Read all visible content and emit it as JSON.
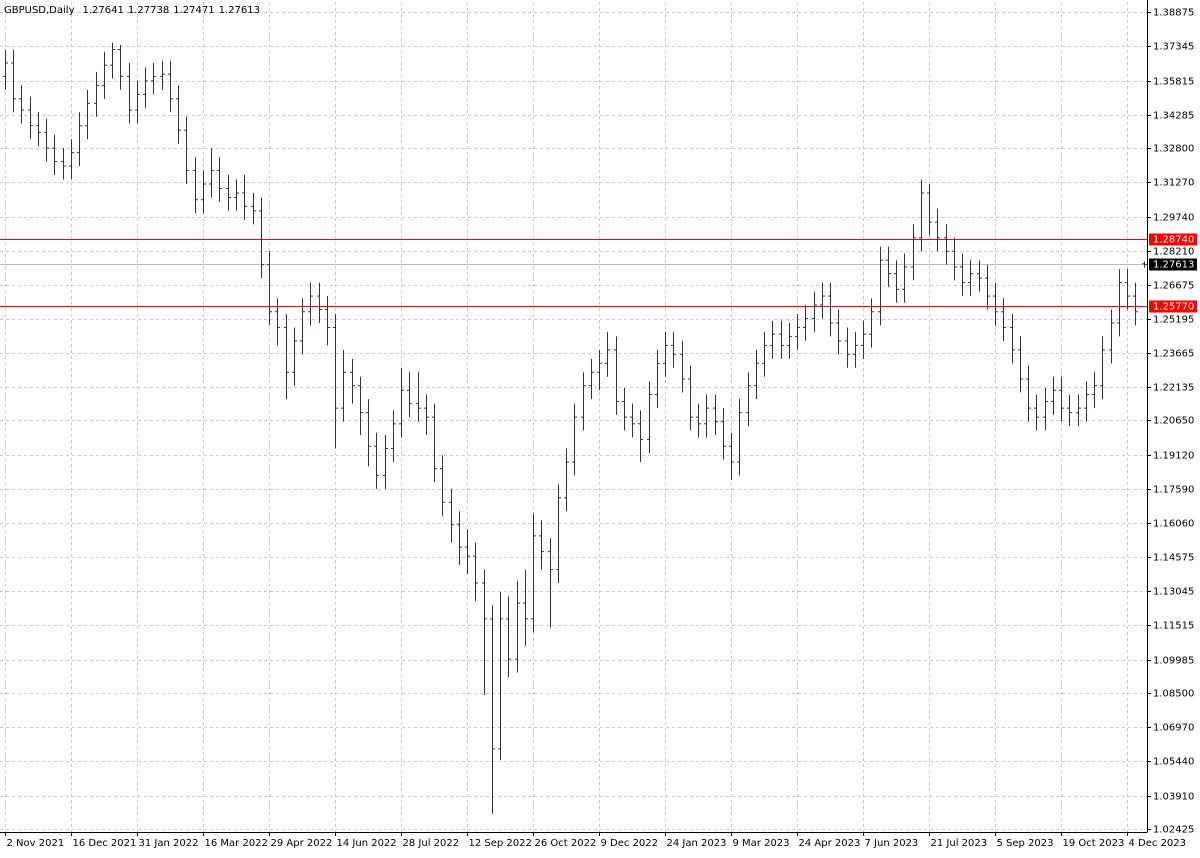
{
  "chart_data": {
    "type": "ohlc",
    "title": "GBPUSD,Daily",
    "color": "#333333",
    "grid": true,
    "xlim": [
      -0.6,
      138.4
    ],
    "ylim": [
      1.0229,
      1.3932
    ],
    "xticks": [
      {
        "value": 0,
        "label": "2 Nov 2021"
      },
      {
        "value": 8,
        "label": "16 Dec 2021"
      },
      {
        "value": 16,
        "label": "31 Jan 2022"
      },
      {
        "value": 24,
        "label": "16 Mar 2022"
      },
      {
        "value": 32,
        "label": "29 Apr 2022"
      },
      {
        "value": 40,
        "label": "14 Jun 2022"
      },
      {
        "value": 48,
        "label": "28 Jul 2022"
      },
      {
        "value": 56,
        "label": "12 Sep 2022"
      },
      {
        "value": 64,
        "label": "26 Oct 2022"
      },
      {
        "value": 72,
        "label": "9 Dec 2022"
      },
      {
        "value": 80,
        "label": "24 Jan 2023"
      },
      {
        "value": 88,
        "label": "9 Mar 2023"
      },
      {
        "value": 96,
        "label": "24 Apr 2023"
      },
      {
        "value": 104,
        "label": "7 Jun 2023"
      },
      {
        "value": 112,
        "label": "21 Jul 2023"
      },
      {
        "value": 120,
        "label": "5 Sep 2023"
      },
      {
        "value": 128,
        "label": "19 Oct 2023"
      },
      {
        "value": 136,
        "label": "4 Dec 2023"
      }
    ],
    "yticks": [
      1.38875,
      1.37345,
      1.35815,
      1.34285,
      {
        "value": 1.328,
        "label": "1.32800"
      },
      {
        "value": 1.3127,
        "label": "1.31270"
      },
      {
        "value": 1.2974,
        "label": "1.29740"
      },
      {
        "value": 1.2821,
        "label": "1.28210"
      },
      1.26675,
      1.25195,
      1.23665,
      1.22135,
      {
        "value": 1.2065,
        "label": "1.20650"
      },
      {
        "value": 1.1912,
        "label": "1.19120"
      },
      {
        "value": 1.1759,
        "label": "1.17590"
      },
      {
        "value": 1.1606,
        "label": "1.16060"
      },
      1.14575,
      1.13045,
      1.11515,
      1.09985,
      {
        "value": 1.085,
        "label": "1.08500"
      },
      {
        "value": 1.0697,
        "label": "1.06970"
      },
      {
        "value": 1.0544,
        "label": "1.05440"
      },
      {
        "value": 1.0391,
        "label": "1.03910"
      },
      1.02425
    ],
    "levels": [
      {
        "value": 1.2874,
        "label": "1.28740",
        "color": "#ff0000"
      },
      {
        "value": 1.2577,
        "label": "1.25770",
        "color": "#ff0000"
      }
    ],
    "open": [
      1.36,
      1.366,
      1.35,
      1.345,
      1.338,
      1.335,
      1.328,
      1.322,
      1.32,
      1.326,
      1.338,
      1.348,
      1.356,
      1.365,
      1.372,
      1.36,
      1.345,
      1.352,
      1.358,
      1.36,
      1.361,
      1.35,
      1.336,
      1.318,
      1.305,
      1.312,
      1.318,
      1.31,
      1.306,
      1.308,
      1.302,
      1.3,
      1.276,
      1.255,
      1.248,
      1.228,
      1.242,
      1.255,
      1.262,
      1.256,
      1.248,
      1.212,
      1.228,
      1.222,
      1.21,
      1.195,
      1.182,
      1.194,
      1.205,
      1.22,
      1.214,
      1.212,
      1.208,
      1.185,
      1.17,
      1.16,
      1.15,
      1.146,
      1.134,
      1.118,
      1.06,
      1.118,
      1.1,
      1.125,
      1.118,
      1.155,
      1.148,
      1.14,
      1.172,
      1.188,
      1.208,
      1.222,
      1.228,
      1.232,
      1.238,
      1.215,
      1.208,
      1.205,
      1.198,
      1.218,
      1.232,
      1.24,
      1.236,
      1.225,
      1.208,
      1.205,
      1.212,
      1.206,
      1.195,
      1.188,
      1.21,
      1.222,
      1.232,
      1.24,
      1.245,
      1.24,
      1.244,
      1.248,
      1.252,
      1.258,
      1.262,
      1.25,
      1.242,
      1.236,
      1.24,
      1.245,
      1.255,
      1.278,
      1.272,
      1.265,
      1.275,
      1.288,
      1.308,
      1.295,
      1.288,
      1.282,
      1.275,
      1.268,
      1.272,
      1.27,
      1.262,
      1.255,
      1.248,
      1.238,
      1.225,
      1.212,
      1.208,
      1.215,
      1.22,
      1.212,
      1.21,
      1.212,
      1.218,
      1.222,
      1.238,
      1.25,
      1.268,
      1.262,
      1.27641
    ],
    "high": [
      1.372,
      1.372,
      1.356,
      1.351,
      1.344,
      1.341,
      1.334,
      1.328,
      1.332,
      1.344,
      1.354,
      1.362,
      1.371,
      1.375,
      1.374,
      1.366,
      1.358,
      1.364,
      1.366,
      1.367,
      1.367,
      1.356,
      1.342,
      1.324,
      1.318,
      1.328,
      1.324,
      1.316,
      1.314,
      1.316,
      1.308,
      1.306,
      1.282,
      1.261,
      1.254,
      1.248,
      1.261,
      1.268,
      1.268,
      1.262,
      1.254,
      1.238,
      1.234,
      1.226,
      1.216,
      1.201,
      1.2,
      1.211,
      1.23,
      1.228,
      1.228,
      1.218,
      1.214,
      1.191,
      1.176,
      1.166,
      1.158,
      1.152,
      1.14,
      1.124,
      1.13,
      1.128,
      1.135,
      1.14,
      1.165,
      1.162,
      1.154,
      1.178,
      1.194,
      1.214,
      1.228,
      1.234,
      1.238,
      1.246,
      1.244,
      1.221,
      1.214,
      1.211,
      1.224,
      1.238,
      1.246,
      1.246,
      1.242,
      1.231,
      1.214,
      1.218,
      1.218,
      1.212,
      1.201,
      1.216,
      1.228,
      1.238,
      1.246,
      1.251,
      1.251,
      1.25,
      1.254,
      1.258,
      1.264,
      1.268,
      1.268,
      1.256,
      1.248,
      1.246,
      1.251,
      1.261,
      1.284,
      1.284,
      1.278,
      1.281,
      1.294,
      1.314,
      1.312,
      1.301,
      1.294,
      1.288,
      1.281,
      1.278,
      1.278,
      1.276,
      1.268,
      1.261,
      1.254,
      1.244,
      1.231,
      1.218,
      1.221,
      1.226,
      1.226,
      1.218,
      1.218,
      1.224,
      1.228,
      1.244,
      1.256,
      1.274,
      1.274,
      1.268,
      1.27738
    ],
    "low": [
      1.354,
      1.344,
      1.339,
      1.332,
      1.329,
      1.322,
      1.316,
      1.314,
      1.314,
      1.32,
      1.332,
      1.342,
      1.35,
      1.359,
      1.354,
      1.339,
      1.339,
      1.346,
      1.352,
      1.354,
      1.344,
      1.33,
      1.312,
      1.299,
      1.299,
      1.306,
      1.304,
      1.3,
      1.3,
      1.296,
      1.294,
      1.27,
      1.249,
      1.24,
      1.216,
      1.222,
      1.236,
      1.249,
      1.25,
      1.24,
      1.194,
      1.206,
      1.214,
      1.2,
      1.186,
      1.176,
      1.176,
      1.188,
      1.199,
      1.208,
      1.206,
      1.2,
      1.179,
      1.164,
      1.152,
      1.142,
      1.138,
      1.126,
      1.084,
      1.031,
      1.055,
      1.092,
      1.094,
      1.106,
      1.112,
      1.14,
      1.114,
      1.134,
      1.166,
      1.182,
      1.202,
      1.216,
      1.22,
      1.226,
      1.209,
      1.202,
      1.199,
      1.188,
      1.192,
      1.212,
      1.226,
      1.23,
      1.219,
      1.202,
      1.199,
      1.199,
      1.2,
      1.189,
      1.18,
      1.182,
      1.204,
      1.216,
      1.226,
      1.234,
      1.234,
      1.234,
      1.238,
      1.242,
      1.246,
      1.252,
      1.244,
      1.236,
      1.23,
      1.23,
      1.234,
      1.239,
      1.249,
      1.266,
      1.259,
      1.259,
      1.269,
      1.282,
      1.289,
      1.282,
      1.276,
      1.269,
      1.262,
      1.262,
      1.264,
      1.256,
      1.249,
      1.242,
      1.232,
      1.219,
      1.206,
      1.202,
      1.202,
      1.209,
      1.206,
      1.204,
      1.204,
      1.206,
      1.212,
      1.216,
      1.232,
      1.244,
      1.256,
      1.249,
      1.27471
    ],
    "close": [
      1.366,
      1.35,
      1.345,
      1.338,
      1.335,
      1.328,
      1.322,
      1.32,
      1.326,
      1.338,
      1.348,
      1.356,
      1.365,
      1.372,
      1.36,
      1.345,
      1.352,
      1.358,
      1.36,
      1.361,
      1.35,
      1.336,
      1.318,
      1.305,
      1.312,
      1.318,
      1.31,
      1.306,
      1.308,
      1.302,
      1.3,
      1.276,
      1.255,
      1.248,
      1.228,
      1.242,
      1.255,
      1.262,
      1.256,
      1.248,
      1.212,
      1.228,
      1.222,
      1.21,
      1.195,
      1.182,
      1.194,
      1.205,
      1.22,
      1.214,
      1.212,
      1.208,
      1.185,
      1.17,
      1.16,
      1.15,
      1.146,
      1.134,
      1.118,
      1.06,
      1.118,
      1.1,
      1.125,
      1.118,
      1.155,
      1.148,
      1.14,
      1.172,
      1.188,
      1.208,
      1.222,
      1.228,
      1.232,
      1.238,
      1.215,
      1.208,
      1.205,
      1.198,
      1.218,
      1.232,
      1.24,
      1.236,
      1.225,
      1.208,
      1.205,
      1.212,
      1.206,
      1.195,
      1.188,
      1.21,
      1.222,
      1.232,
      1.24,
      1.245,
      1.24,
      1.244,
      1.248,
      1.252,
      1.258,
      1.262,
      1.25,
      1.242,
      1.236,
      1.24,
      1.245,
      1.255,
      1.278,
      1.272,
      1.265,
      1.275,
      1.288,
      1.308,
      1.295,
      1.288,
      1.282,
      1.275,
      1.268,
      1.272,
      1.27,
      1.262,
      1.255,
      1.248,
      1.238,
      1.225,
      1.212,
      1.208,
      1.215,
      1.22,
      1.212,
      1.21,
      1.212,
      1.218,
      1.222,
      1.238,
      1.25,
      1.268,
      1.262,
      1.255,
      1.27613
    ]
  }
}
